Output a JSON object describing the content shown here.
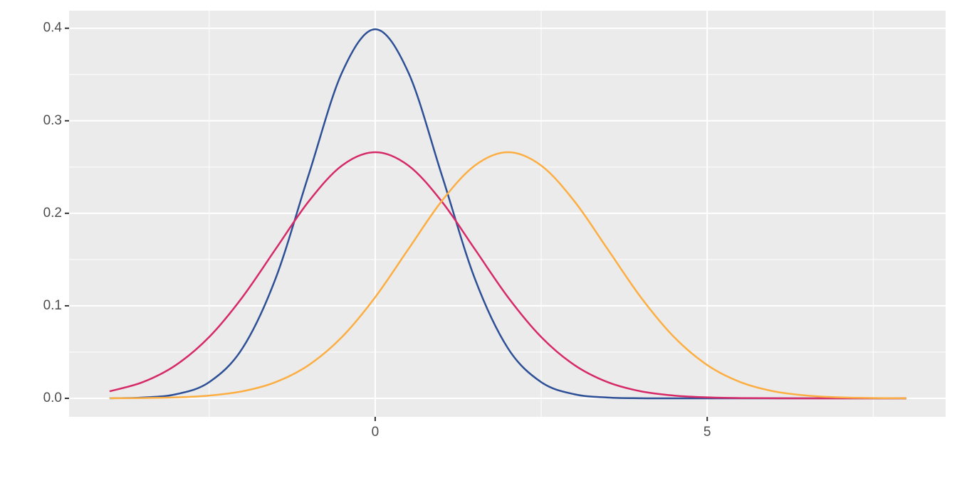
{
  "chart_data": {
    "type": "line",
    "x": [
      -4,
      -3.5,
      -3,
      -2.5,
      -2,
      -1.5,
      -1,
      -0.5,
      0,
      0.5,
      1,
      1.5,
      2,
      2.5,
      3,
      3.5,
      4,
      4.5,
      5,
      5.5,
      6,
      6.5,
      7,
      7.5,
      8
    ],
    "series": [
      {
        "color": "#2d4f96",
        "values": [
          0.0001,
          0.0009,
          0.0044,
          0.0175,
          0.054,
          0.1295,
          0.242,
          0.3521,
          0.3989,
          0.3521,
          0.242,
          0.1295,
          0.054,
          0.0175,
          0.0044,
          0.0009,
          0.0001,
          0,
          0,
          0,
          0,
          0,
          0,
          0,
          0
        ]
      },
      {
        "color": "#d62a68",
        "values": [
          0.0076,
          0.0175,
          0.036,
          0.0663,
          0.1093,
          0.1613,
          0.213,
          0.2516,
          0.266,
          0.2516,
          0.213,
          0.1613,
          0.1093,
          0.0663,
          0.036,
          0.0175,
          0.0076,
          0.003,
          0.001,
          0.0003,
          0.0001,
          0,
          0,
          0,
          0
        ]
      },
      {
        "color": "#fcae42",
        "values": [
          0.0001,
          0.0003,
          0.001,
          0.003,
          0.0076,
          0.0175,
          0.036,
          0.0663,
          0.1093,
          0.1613,
          0.213,
          0.2516,
          0.266,
          0.2516,
          0.213,
          0.1613,
          0.1093,
          0.0663,
          0.036,
          0.0175,
          0.0076,
          0.003,
          0.001,
          0.0003,
          0.0001
        ]
      }
    ],
    "xlim": [
      -4.61,
      8.59
    ],
    "ylim": [
      -0.02,
      0.419
    ],
    "xticks": [
      0,
      5
    ],
    "minor_xticks": [
      -2.5,
      2.5,
      7.5
    ],
    "yticks": [
      {
        "value": 0,
        "label": "0.0"
      },
      0.1,
      0.2,
      0.3,
      0.4
    ],
    "minor_yticks": [
      0.05,
      0.15,
      0.25,
      0.35
    ],
    "grid": true
  }
}
